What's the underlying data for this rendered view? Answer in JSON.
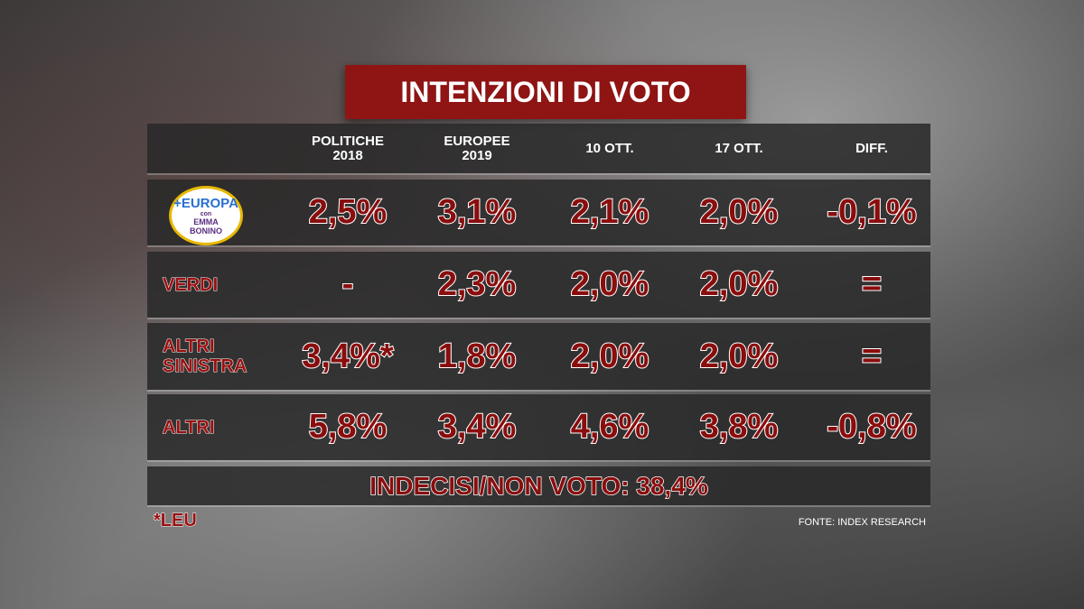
{
  "header": {
    "title": "INTENZIONI DI VOTO"
  },
  "table": {
    "columns": [
      "POLITICHE 2018",
      "EUROPEE 2019",
      "10 OTT.",
      "17 OTT.",
      "DIFF."
    ],
    "rows": [
      {
        "logo": {
          "title": "+EUROPA",
          "prefix": "con",
          "subtitle": "EMMA BONINO"
        },
        "values": [
          "2,5%",
          "3,1%",
          "2,1%",
          "2,0%",
          "-0,1%"
        ]
      },
      {
        "label": "VERDI",
        "values": [
          "-",
          "2,3%",
          "2,0%",
          "2,0%",
          "="
        ]
      },
      {
        "label": "ALTRI SINISTRA",
        "values": [
          "3,4%*",
          "1,8%",
          "2,0%",
          "2,0%",
          "="
        ]
      },
      {
        "label": "ALTRI",
        "values": [
          "5,8%",
          "3,4%",
          "4,6%",
          "3,8%",
          "-0,8%"
        ]
      }
    ],
    "footer": "INDECISI/NON VOTO: 38,4%"
  },
  "note": "*LEU",
  "source": "FONTE: INDEX RESEARCH"
}
